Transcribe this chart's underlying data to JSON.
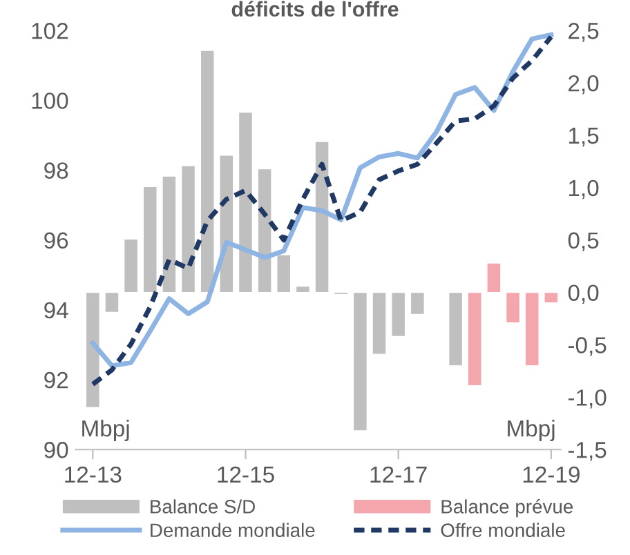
{
  "chart_data": {
    "type": "bar",
    "title": "déficits de l'offre",
    "categories": [
      "12-13",
      null,
      null,
      null,
      null,
      null,
      null,
      null,
      "12-15",
      null,
      null,
      null,
      null,
      null,
      null,
      null,
      "12-17",
      null,
      null,
      null,
      null,
      null,
      null,
      null,
      "12-19"
    ],
    "series": [
      {
        "name": "Balance S/D",
        "axis": "y2",
        "color": "#bfbfbf",
        "values": [
          -1.1,
          -0.19,
          0.51,
          1.01,
          1.11,
          1.21,
          2.31,
          1.31,
          1.72,
          1.18,
          0.36,
          0.06,
          1.44,
          -0.02,
          -1.32,
          -0.59,
          -0.42,
          -0.21,
          null,
          -0.7,
          null,
          null,
          null,
          null,
          null
        ]
      },
      {
        "name": "Balance prévue",
        "axis": "y2",
        "color": "#f4a6ad",
        "values": [
          null,
          null,
          null,
          null,
          null,
          null,
          null,
          null,
          null,
          null,
          null,
          null,
          null,
          null,
          null,
          null,
          null,
          null,
          null,
          null,
          -0.89,
          0.28,
          -0.29,
          -0.7,
          -0.1
        ]
      },
      {
        "name": "Demande mondiale",
        "type": "line",
        "axis": "y",
        "color": "#8db4e2",
        "line_style": "solid",
        "values": [
          93.05,
          92.4,
          92.49,
          93.39,
          94.32,
          93.89,
          94.23,
          95.94,
          95.72,
          95.5,
          95.69,
          96.93,
          96.84,
          96.58,
          98.07,
          98.38,
          98.48,
          98.35,
          99.1,
          100.17,
          100.37,
          99.71,
          100.83,
          101.76,
          101.88
        ]
      },
      {
        "name": "Offre mondiale",
        "type": "line",
        "axis": "y",
        "color": "#1f3864",
        "line_style": "dashed",
        "values": [
          91.87,
          92.28,
          93.02,
          94.08,
          95.44,
          95.19,
          96.55,
          97.17,
          97.42,
          96.74,
          96.0,
          97.17,
          98.17,
          96.55,
          96.8,
          97.73,
          97.98,
          98.17,
          98.78,
          99.41,
          99.47,
          99.84,
          100.64,
          101.14,
          101.82
        ]
      }
    ],
    "ylim": [
      90,
      102
    ],
    "yticks": [
      90,
      92,
      94,
      96,
      98,
      100,
      102
    ],
    "y2lim": [
      -1.5,
      2.5
    ],
    "y2ticks": [
      {
        "value": -1.5,
        "label": "-1,5"
      },
      {
        "value": -1.0,
        "label": "-1,0"
      },
      {
        "value": -0.5,
        "label": "-0,5"
      },
      {
        "value": 0.0,
        "label": "0,0"
      },
      {
        "value": 0.5,
        "label": "0,5"
      },
      {
        "value": 1.0,
        "label": "1,0"
      },
      {
        "value": 1.5,
        "label": "1,5"
      },
      {
        "value": 2.0,
        "label": "2,0"
      },
      {
        "value": 2.5,
        "label": "2,5"
      }
    ],
    "annotations": [
      "Mbpj",
      "Mbpj"
    ],
    "grid": false,
    "legend": "bottom"
  }
}
